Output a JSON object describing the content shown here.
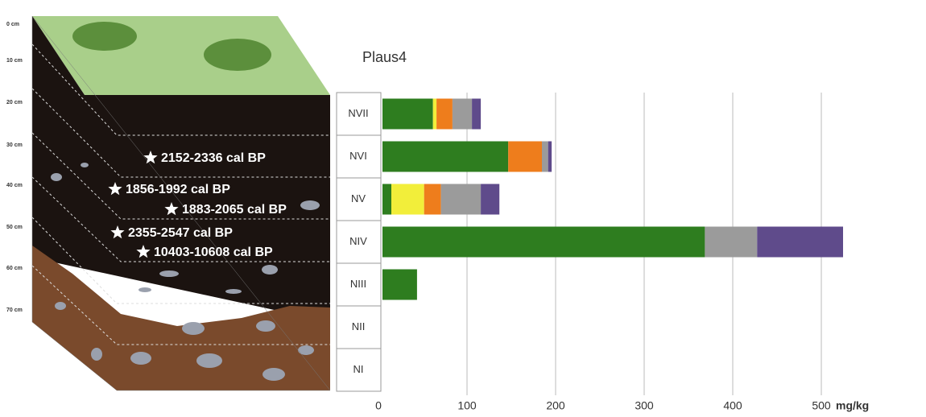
{
  "chart_data": {
    "type": "bar",
    "orientation": "horizontal",
    "stacked": true,
    "title": "Plaus4",
    "x_label": "mg/kg",
    "categories": [
      "NVII",
      "NVI",
      "NV",
      "NIV",
      "NIII",
      "NII",
      "NI"
    ],
    "series": [
      {
        "color": "#2e7d1f",
        "values": [
          57,
          142,
          10,
          364,
          39,
          0,
          0
        ]
      },
      {
        "color": "#f2ee3a",
        "values": [
          4,
          0,
          37,
          0,
          0,
          0,
          0
        ]
      },
      {
        "color": "#ee7d1c",
        "values": [
          18,
          38,
          19,
          0,
          0,
          0,
          0
        ]
      },
      {
        "color": "#9b9b9b",
        "values": [
          22,
          7,
          45,
          59,
          0,
          0,
          0
        ]
      },
      {
        "color": "#5f4b8b",
        "values": [
          10,
          4,
          21,
          97,
          0,
          0,
          0
        ]
      }
    ],
    "xlim": [
      0,
      540
    ],
    "xticks": [
      0,
      100,
      200,
      300,
      400,
      500
    ],
    "grid": true
  },
  "soil_profile": {
    "depth_labels": [
      "0 cm",
      "10 cm",
      "20 cm",
      "30 cm",
      "40 cm",
      "50 cm",
      "60 cm",
      "70 cm"
    ],
    "dates": [
      "2152-2336 cal BP",
      "1856-1992 cal BP",
      "1883-2065 cal BP",
      "2355-2547 cal BP",
      "10403-10608 cal BP"
    ]
  }
}
